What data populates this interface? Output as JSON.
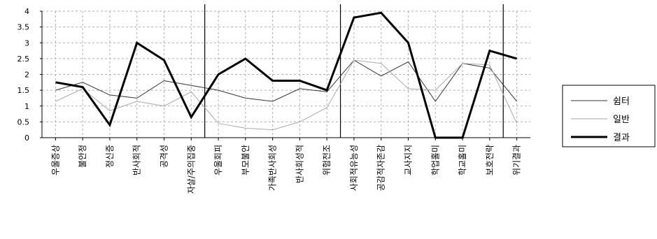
{
  "chart_data": {
    "type": "line",
    "categories": [
      "우울증상",
      "불안정",
      "정신증",
      "반사회적",
      "공격성",
      "자살/주의집중",
      "우울회피",
      "부모불안",
      "가족반사회성",
      "반사회성적",
      "위험전조",
      "사회적유능성",
      "공감적자존감",
      "교사지지",
      "학업홀미",
      "학교홀미",
      "보호전략",
      "위기결과"
    ],
    "ylim": [
      0,
      4
    ],
    "yticks": [
      0,
      0.5,
      1,
      1.5,
      2,
      2.5,
      3,
      3.5,
      4
    ],
    "ytick_labels": [
      "0",
      "0.5",
      "1",
      "1.5",
      "2",
      "2.5",
      "3",
      "3.5",
      "4"
    ],
    "grid": true,
    "separators_after": [
      5,
      10,
      16
    ],
    "legend_position": "right",
    "series": [
      {
        "name": "쉼터",
        "color": "#333333",
        "width": 1,
        "values": [
          1.5,
          1.75,
          1.35,
          1.25,
          1.8,
          1.65,
          1.5,
          1.25,
          1.15,
          1.55,
          1.45,
          2.45,
          1.95,
          2.4,
          1.15,
          2.35,
          2.2,
          1.15
        ]
      },
      {
        "name": "일반",
        "color": "#aaaaaa",
        "width": 1,
        "values": [
          1.15,
          1.55,
          0.85,
          1.15,
          1.0,
          1.45,
          0.45,
          0.3,
          0.25,
          0.5,
          0.95,
          2.45,
          2.35,
          1.55,
          1.5,
          2.35,
          2.3,
          0.45
        ]
      },
      {
        "name": "결과",
        "color": "#000000",
        "width": 3,
        "values": [
          1.75,
          1.6,
          0.4,
          3.0,
          2.45,
          0.65,
          2.0,
          2.5,
          1.8,
          1.8,
          1.5,
          3.8,
          3.95,
          3.0,
          0.0,
          0.0,
          2.75,
          2.5
        ]
      }
    ]
  }
}
